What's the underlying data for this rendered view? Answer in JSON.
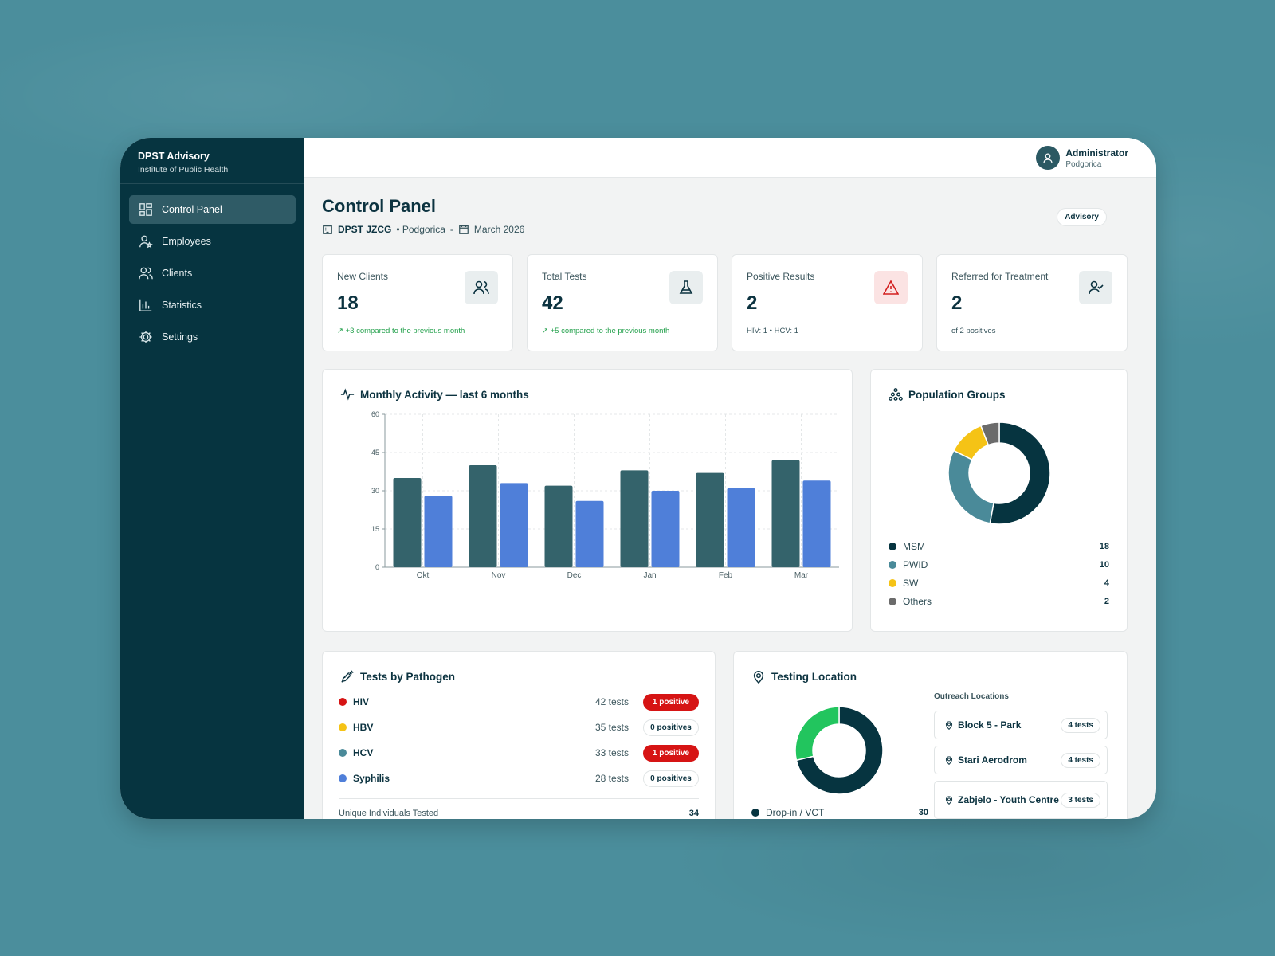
{
  "brand": {
    "title": "DPST Advisory",
    "subtitle": "Institute of Public Health"
  },
  "nav": [
    {
      "label": "Control Panel",
      "icon": "grid-icon",
      "active": true
    },
    {
      "label": "Employees",
      "icon": "user-star-icon"
    },
    {
      "label": "Clients",
      "icon": "users-icon"
    },
    {
      "label": "Statistics",
      "icon": "bar-chart-icon"
    },
    {
      "label": "Settings",
      "icon": "gear-icon"
    }
  ],
  "user": {
    "name": "Administrator",
    "city": "Podgorica"
  },
  "page": {
    "title": "Control Panel",
    "org": "DPST JZCG",
    "city": "• Podgorica",
    "sep": "-",
    "period": "March 2026",
    "badge": "Advisory"
  },
  "kpis": [
    {
      "label": "New Clients",
      "value": "18",
      "sub": "+3 compared to the previous month",
      "icon": "users-icon"
    },
    {
      "label": "Total Tests",
      "value": "42",
      "sub": "+5 compared to the previous month",
      "icon": "flask-icon"
    },
    {
      "label": "Positive Results",
      "value": "2",
      "sub": "HIV: 1 • HCV: 1",
      "icon": "warning-icon"
    },
    {
      "label": "Referred for Treatment",
      "value": "2",
      "sub": "of 2 positives",
      "icon": "user-check-icon"
    }
  ],
  "activity": {
    "title": "Monthly Activity — last 6 months"
  },
  "chart_data": [
    {
      "type": "bar",
      "title": "Monthly Activity — last 6 months",
      "categories": [
        "Okt",
        "Nov",
        "Dec",
        "Jan",
        "Feb",
        "Mar"
      ],
      "series": [
        {
          "values": [
            35,
            40,
            32,
            38,
            37,
            42
          ],
          "color": "#34636b"
        },
        {
          "values": [
            28,
            33,
            26,
            30,
            31,
            34
          ],
          "color": "#4f7fd9"
        }
      ],
      "yticks": [
        0,
        15,
        30,
        45,
        60
      ],
      "ylim": [
        0,
        60
      ],
      "grid": true
    },
    {
      "type": "pie",
      "title": "Population Groups",
      "donut": true,
      "labels": [
        "MSM",
        "PWID",
        "SW",
        "Others"
      ],
      "values": [
        18,
        10,
        4,
        2
      ],
      "colors": [
        "#063440",
        "#4a8a99",
        "#f5c316",
        "#6b6b6b"
      ]
    },
    {
      "type": "pie",
      "title": "Testing Location",
      "donut": true,
      "labels": [
        "Drop-in / VCT",
        "Outreach"
      ],
      "values": [
        30,
        12
      ],
      "colors": [
        "#063440",
        "#22c55e"
      ]
    }
  ],
  "population": {
    "title": "Population Groups",
    "items": [
      {
        "label": "MSM",
        "value": "18",
        "color": "#063440"
      },
      {
        "label": "PWID",
        "value": "10",
        "color": "#4a8a99"
      },
      {
        "label": "SW",
        "value": "4",
        "color": "#f5c316"
      },
      {
        "label": "Others",
        "value": "2",
        "color": "#6b6b6b"
      }
    ]
  },
  "pathogen": {
    "title": "Tests by Pathogen",
    "items": [
      {
        "name": "HIV",
        "tests": "42 tests",
        "badge": "1 positive",
        "color": "#d61414",
        "pos": true
      },
      {
        "name": "HBV",
        "tests": "35 tests",
        "badge": "0 positives",
        "color": "#f5c316",
        "pos": false
      },
      {
        "name": "HCV",
        "tests": "33 tests",
        "badge": "1 positive",
        "color": "#4a8a99",
        "pos": true
      },
      {
        "name": "Syphilis",
        "tests": "28 tests",
        "badge": "0 positives",
        "color": "#4f7fd9",
        "pos": false
      }
    ],
    "footer_label": "Unique Individuals Tested",
    "footer_value": "34"
  },
  "location": {
    "title": "Testing Location",
    "legend_label": "Drop-in / VCT",
    "legend_value": "30",
    "outreach_title": "Outreach Locations",
    "outreach": [
      {
        "name": "Block 5 - Park",
        "tests": "4 tests"
      },
      {
        "name": "Stari Aerodrom",
        "tests": "4 tests"
      },
      {
        "name": "Zabjelo - Youth Centre",
        "tests": "3 tests"
      }
    ]
  }
}
